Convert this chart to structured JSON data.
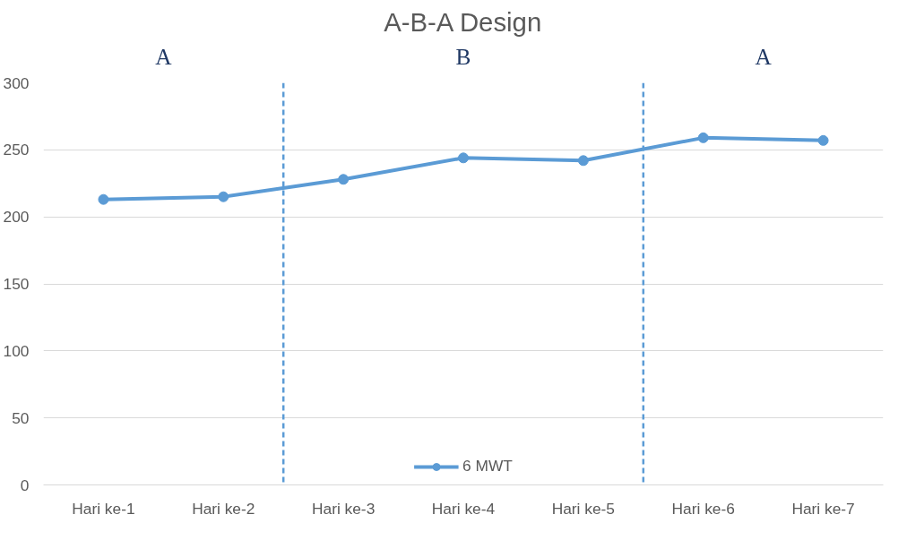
{
  "chart_data": {
    "type": "line",
    "title": "A-B-A Design",
    "categories": [
      "Hari ke-1",
      "Hari ke-2",
      "Hari ke-3",
      "Hari ke-4",
      "Hari ke-5",
      "Hari ke-6",
      "Hari ke-7"
    ],
    "series": [
      {
        "name": "6 MWT",
        "color": "#5b9bd5",
        "values": [
          213,
          215,
          228,
          244,
          242,
          259,
          257
        ]
      }
    ],
    "ylim": [
      0,
      300
    ],
    "yticks": [
      0,
      50,
      100,
      150,
      200,
      250,
      300
    ],
    "grid": "y",
    "legend": "bottom",
    "marker": "circle",
    "line_style": "solid",
    "annotations": [
      "A",
      "B",
      "A"
    ]
  }
}
